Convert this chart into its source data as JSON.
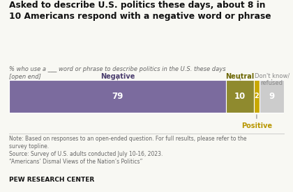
{
  "title": "Asked to describe U.S. politics these days, about 8 in\n10 Americans respond with a negative word or phrase",
  "subtitle_line1": "% who use a ___ word or phrase to describe politics in the U.S. these days",
  "subtitle_line2": "[open end]",
  "segments": [
    {
      "label": "Negative",
      "value": 79,
      "color": "#7b6b9e"
    },
    {
      "label": "Neutral",
      "value": 10,
      "color": "#8f8a2e"
    },
    {
      "label": "Positive",
      "value": 2,
      "color": "#c8a800"
    },
    {
      "label": "Don't know/\nrefused",
      "value": 9,
      "color": "#cccccc"
    }
  ],
  "label_colors": {
    "Negative": "#4a3d6e",
    "Neutral": "#6b6600",
    "Positive": "#b89600",
    "dontknow": "#888888"
  },
  "note1": "Note: Based on responses to an open-ended question. For full results, please refer to the",
  "note2": "survey topline.",
  "source": "Source: Survey of U.S. adults conducted July 10-16, 2023.",
  "source2": "“Americans’ Dismal Views of the Nation’s Politics”",
  "footer": "PEW RESEARCH CENTER",
  "bg_color": "#f8f8f3"
}
